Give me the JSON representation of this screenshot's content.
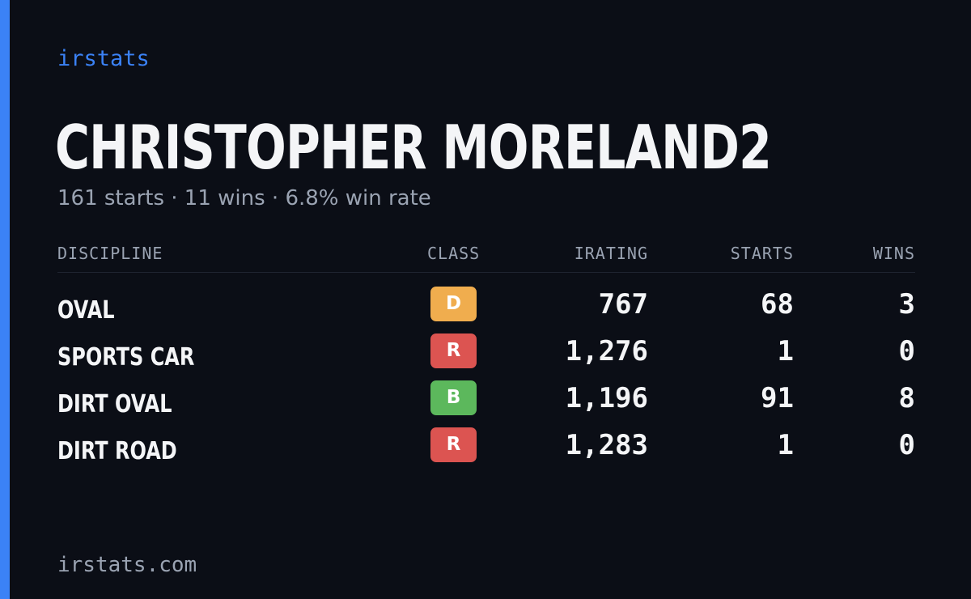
{
  "brand": "irstats",
  "player": {
    "name": "CHRISTOPHER MORELAND2",
    "summary": "161 starts · 11 wins · 6.8% win rate"
  },
  "table": {
    "headers": {
      "discipline": "DISCIPLINE",
      "class": "CLASS",
      "irating": "IRATING",
      "starts": "STARTS",
      "wins": "WINS"
    },
    "rows": [
      {
        "discipline": "OVAL",
        "class": "D",
        "class_color": "#f0ad4e",
        "irating": "767",
        "starts": "68",
        "wins": "3"
      },
      {
        "discipline": "SPORTS CAR",
        "class": "R",
        "class_color": "#dc5451",
        "irating": "1,276",
        "starts": "1",
        "wins": "0"
      },
      {
        "discipline": "DIRT OVAL",
        "class": "B",
        "class_color": "#5cb85c",
        "irating": "1,196",
        "starts": "91",
        "wins": "8"
      },
      {
        "discipline": "DIRT ROAD",
        "class": "R",
        "class_color": "#dc5451",
        "irating": "1,283",
        "starts": "1",
        "wins": "0"
      }
    ]
  },
  "footer": {
    "url": "irstats.com"
  },
  "colors": {
    "background": "#0b0e16",
    "accent": "#3b82f6",
    "text": "#f4f5f7",
    "muted": "#9aa3b2"
  }
}
